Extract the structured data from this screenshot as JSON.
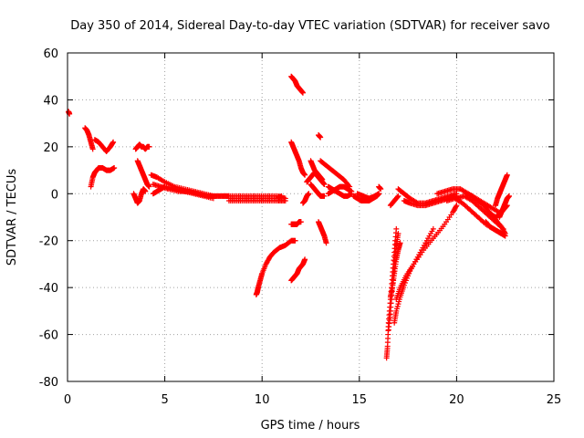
{
  "chart_data": {
    "type": "scatter",
    "title": "Day 350 of 2014, Sidereal Day-to-day VTEC variation (SDTVAR) for receiver savo",
    "xlabel": "GPS time / hours",
    "ylabel": "SDTVAR / TECUs",
    "xlim": [
      0,
      25
    ],
    "ylim": [
      -80,
      60
    ],
    "xticks": [
      "0",
      "5",
      "10",
      "15",
      "20",
      "25"
    ],
    "yticks": [
      "-80",
      "-60",
      "-40",
      "-20",
      "0",
      "20",
      "40",
      "60"
    ],
    "grid": true,
    "marker": "+",
    "color": "#ff0000",
    "series": [
      {
        "name": "s0",
        "x": [
          0.05,
          0.1
        ],
        "y": [
          35,
          34
        ]
      },
      {
        "name": "s1",
        "x": [
          0.9,
          1.0,
          1.1,
          1.2,
          1.3
        ],
        "y": [
          28,
          27,
          25,
          22,
          19
        ]
      },
      {
        "name": "s2",
        "x": [
          1.4,
          1.6,
          1.8,
          2.0,
          2.2,
          2.35
        ],
        "y": [
          23,
          22,
          20,
          18,
          20,
          22
        ]
      },
      {
        "name": "s3",
        "x": [
          1.2,
          1.3,
          1.4,
          1.5,
          1.6,
          1.8,
          2.0,
          2.2,
          2.4
        ],
        "y": [
          3,
          7,
          9,
          10,
          11,
          11,
          10,
          10,
          11
        ]
      },
      {
        "name": "s4",
        "x": [
          3.5,
          3.6,
          3.7,
          3.8,
          3.9,
          4.0,
          4.1,
          4.2
        ],
        "y": [
          19,
          20,
          21,
          20,
          20,
          19,
          20,
          20
        ]
      },
      {
        "name": "s5",
        "x": [
          3.4,
          3.5,
          3.6,
          3.7,
          3.8,
          3.9,
          4.0
        ],
        "y": [
          0,
          -2,
          -4,
          -3,
          0,
          2,
          1
        ]
      },
      {
        "name": "s6",
        "x": [
          3.6,
          3.7,
          3.8,
          3.9,
          4.0,
          4.1,
          4.2
        ],
        "y": [
          14,
          12,
          10,
          8,
          6,
          4,
          3
        ]
      },
      {
        "name": "s7",
        "x": [
          4.3,
          4.6,
          5.0,
          5.5,
          6.0,
          6.5,
          7.0,
          7.5,
          8.0,
          8.3
        ],
        "y": [
          8,
          7,
          5,
          3,
          2,
          1,
          0,
          -1,
          -1,
          -1
        ]
      },
      {
        "name": "s8",
        "x": [
          4.4,
          4.8,
          5.2,
          5.7,
          6.2,
          6.7,
          7.2,
          7.7,
          8.2
        ],
        "y": [
          4,
          3,
          2,
          1,
          1,
          0,
          -1,
          -1,
          -1
        ]
      },
      {
        "name": "s9",
        "x": [
          4.4,
          4.6,
          4.8,
          5.0,
          5.5,
          6.0,
          6.5,
          7.0,
          7.5
        ],
        "y": [
          0,
          1,
          2,
          3,
          2,
          1,
          0,
          -1,
          -2
        ]
      },
      {
        "name": "s10",
        "x": [
          8.3,
          8.8,
          9.3,
          9.8,
          10.3,
          10.8,
          11.0
        ],
        "y": [
          -2,
          -2,
          -2,
          -2,
          -2,
          -2,
          -1
        ]
      },
      {
        "name": "s11",
        "x": [
          8.3,
          8.8,
          9.3,
          9.8,
          10.3,
          10.8,
          11.2
        ],
        "y": [
          -3,
          -3,
          -3,
          -3,
          -3,
          -3,
          -3
        ]
      },
      {
        "name": "s12",
        "x": [
          8.3,
          8.8,
          9.3,
          9.8,
          10.3,
          10.8,
          11.2
        ],
        "y": [
          -1,
          -1,
          -1,
          -1,
          -1,
          -1,
          -2
        ]
      },
      {
        "name": "s13",
        "x": [
          9.7,
          9.75,
          9.8,
          9.9,
          10.0,
          10.2,
          10.4,
          10.6,
          10.9,
          11.2,
          11.5,
          11.7
        ],
        "y": [
          -43,
          -42,
          -40,
          -37,
          -34,
          -30,
          -27,
          -25,
          -23,
          -22,
          -20,
          -20
        ]
      },
      {
        "name": "s14",
        "x": [
          11.5,
          11.6,
          11.7,
          11.8,
          11.9,
          12.0,
          12.1
        ],
        "y": [
          50,
          49,
          48,
          46,
          45,
          44,
          43
        ]
      },
      {
        "name": "s15",
        "x": [
          11.5,
          11.6,
          11.7,
          11.8,
          11.9,
          12.0,
          12.1,
          12.2
        ],
        "y": [
          22,
          20,
          18,
          16,
          14,
          11,
          9,
          8
        ]
      },
      {
        "name": "s16",
        "x": [
          11.5,
          11.6,
          11.7,
          11.8,
          11.9,
          12.0,
          12.1,
          12.2
        ],
        "y": [
          -37,
          -36,
          -35,
          -34,
          -32,
          -31,
          -30,
          -28
        ]
      },
      {
        "name": "s17",
        "x": [
          11.5,
          11.6,
          11.7,
          11.8,
          11.9,
          12.0
        ],
        "y": [
          -13,
          -13,
          -13,
          -13,
          -12,
          -12
        ]
      },
      {
        "name": "s18",
        "x": [
          12.1,
          12.2,
          12.3,
          12.4
        ],
        "y": [
          -4,
          -3,
          -1,
          0
        ]
      },
      {
        "name": "s19",
        "x": [
          12.3,
          12.4,
          12.5,
          12.6,
          12.7,
          12.8,
          12.9,
          13.0,
          13.1,
          13.2
        ],
        "y": [
          5,
          6,
          7,
          8,
          9,
          8,
          7,
          6,
          5,
          4
        ]
      },
      {
        "name": "s20",
        "x": [
          12.5,
          12.6,
          12.7,
          12.8,
          12.9,
          13.0,
          13.1
        ],
        "y": [
          14,
          12,
          10,
          9,
          8,
          7,
          6
        ]
      },
      {
        "name": "s21",
        "x": [
          12.5,
          12.6,
          12.7,
          12.8,
          12.9,
          13.0,
          13.2
        ],
        "y": [
          4,
          3,
          2,
          1,
          0,
          -1,
          -1
        ]
      },
      {
        "name": "s22",
        "x": [
          12.9,
          13.0
        ],
        "y": [
          25,
          24
        ]
      },
      {
        "name": "s23",
        "x": [
          12.9,
          13.0,
          13.1,
          13.2,
          13.3
        ],
        "y": [
          -12,
          -14,
          -16,
          -18,
          -21
        ]
      },
      {
        "name": "s24",
        "x": [
          13.0,
          13.3,
          13.6,
          13.9,
          14.2,
          14.5
        ],
        "y": [
          14,
          12,
          10,
          8,
          6,
          3
        ]
      },
      {
        "name": "s25",
        "x": [
          13.4,
          13.6,
          13.8,
          14.0,
          14.2,
          14.4,
          14.6
        ],
        "y": [
          0,
          1,
          2,
          3,
          3,
          2,
          1
        ]
      },
      {
        "name": "s26",
        "x": [
          13.4,
          13.6,
          13.8,
          14.0,
          14.2,
          14.4,
          14.6
        ],
        "y": [
          3,
          2,
          1,
          0,
          -1,
          -1,
          0
        ]
      },
      {
        "name": "s27",
        "x": [
          14.7,
          14.9,
          15.1,
          15.3,
          15.5,
          15.7,
          15.9,
          16.0
        ],
        "y": [
          -1,
          -2,
          -3,
          -3,
          -3,
          -2,
          -1,
          0
        ]
      },
      {
        "name": "s28",
        "x": [
          14.9,
          15.2,
          15.5,
          15.8,
          16.0
        ],
        "y": [
          0,
          -1,
          -2,
          -1,
          0
        ]
      },
      {
        "name": "s29",
        "x": [
          16.0,
          16.1
        ],
        "y": [
          3,
          2
        ]
      },
      {
        "name": "s30",
        "x": [
          16.4,
          16.45,
          16.5,
          16.6,
          16.7,
          16.8,
          16.9
        ],
        "y": [
          -70,
          -65,
          -55,
          -45,
          -35,
          -25,
          -15
        ]
      },
      {
        "name": "s31",
        "x": [
          16.5,
          16.6,
          16.7,
          16.8,
          16.9,
          17.0
        ],
        "y": [
          -58,
          -50,
          -40,
          -30,
          -22,
          -17
        ]
      },
      {
        "name": "s32",
        "x": [
          16.6,
          16.7,
          16.8,
          16.9,
          17.0,
          17.1
        ],
        "y": [
          -44,
          -40,
          -34,
          -28,
          -24,
          -21
        ]
      },
      {
        "name": "s33",
        "x": [
          16.6,
          16.8,
          17.0
        ],
        "y": [
          -5,
          -3,
          -1
        ]
      },
      {
        "name": "s34",
        "x": [
          16.8,
          16.9,
          17.1,
          17.3,
          17.6,
          18.0,
          18.4,
          18.8
        ],
        "y": [
          -55,
          -50,
          -44,
          -39,
          -33,
          -27,
          -21,
          -15
        ]
      },
      {
        "name": "s35",
        "x": [
          16.9,
          17.1,
          17.4,
          17.8,
          18.3,
          18.8,
          19.3,
          19.8,
          20.0
        ],
        "y": [
          -45,
          -40,
          -35,
          -30,
          -24,
          -19,
          -14,
          -8,
          -5
        ]
      },
      {
        "name": "s36",
        "x": [
          17.0,
          17.3,
          17.6,
          18.0,
          18.4,
          18.8,
          19.2,
          19.6,
          20.0
        ],
        "y": [
          2,
          0,
          -2,
          -4,
          -4,
          -3,
          -2,
          -1,
          0
        ]
      },
      {
        "name": "s37",
        "x": [
          17.3,
          17.6,
          18.0,
          18.4,
          18.8,
          19.2,
          19.6,
          20.0
        ],
        "y": [
          -3,
          -4,
          -5,
          -5,
          -4,
          -3,
          -2,
          -1
        ]
      },
      {
        "name": "s38",
        "x": [
          19.0,
          19.4,
          19.8,
          20.2,
          20.6,
          21.0,
          21.4,
          21.8,
          22.2
        ],
        "y": [
          0,
          1,
          2,
          2,
          0,
          -2,
          -4,
          -6,
          -8
        ]
      },
      {
        "name": "s39",
        "x": [
          19.5,
          19.9,
          20.3,
          20.7,
          21.1,
          21.5,
          21.9,
          22.3
        ],
        "y": [
          -3,
          -2,
          -4,
          -7,
          -10,
          -13,
          -15,
          -17
        ]
      },
      {
        "name": "s40",
        "x": [
          20.0,
          20.4,
          20.8,
          21.2,
          21.6,
          22.0,
          22.4
        ],
        "y": [
          -2,
          -1,
          -3,
          -6,
          -9,
          -12,
          -15
        ]
      },
      {
        "name": "s41",
        "x": [
          20.5,
          20.8,
          21.1,
          21.4,
          21.7,
          22.0,
          22.3,
          22.5
        ],
        "y": [
          0,
          -1,
          -3,
          -5,
          -8,
          -11,
          -14,
          -17
        ]
      },
      {
        "name": "s42",
        "x": [
          21.5,
          21.7,
          21.9,
          22.1,
          22.3,
          22.5
        ],
        "y": [
          -12,
          -14,
          -15,
          -16,
          -17,
          -18
        ]
      },
      {
        "name": "s43",
        "x": [
          21.6,
          21.8,
          22.0,
          22.2,
          22.4,
          22.6
        ],
        "y": [
          -8,
          -9,
          -10,
          -9,
          -7,
          -5
        ]
      },
      {
        "name": "s44",
        "x": [
          22.0,
          22.1,
          22.2,
          22.3,
          22.4,
          22.5,
          22.6
        ],
        "y": [
          -5,
          -2,
          0,
          2,
          4,
          6,
          8
        ]
      },
      {
        "name": "s45",
        "x": [
          22.2,
          22.3,
          22.4,
          22.5,
          22.6,
          22.7
        ],
        "y": [
          -10,
          -8,
          -6,
          -4,
          -2,
          -1
        ]
      }
    ]
  }
}
